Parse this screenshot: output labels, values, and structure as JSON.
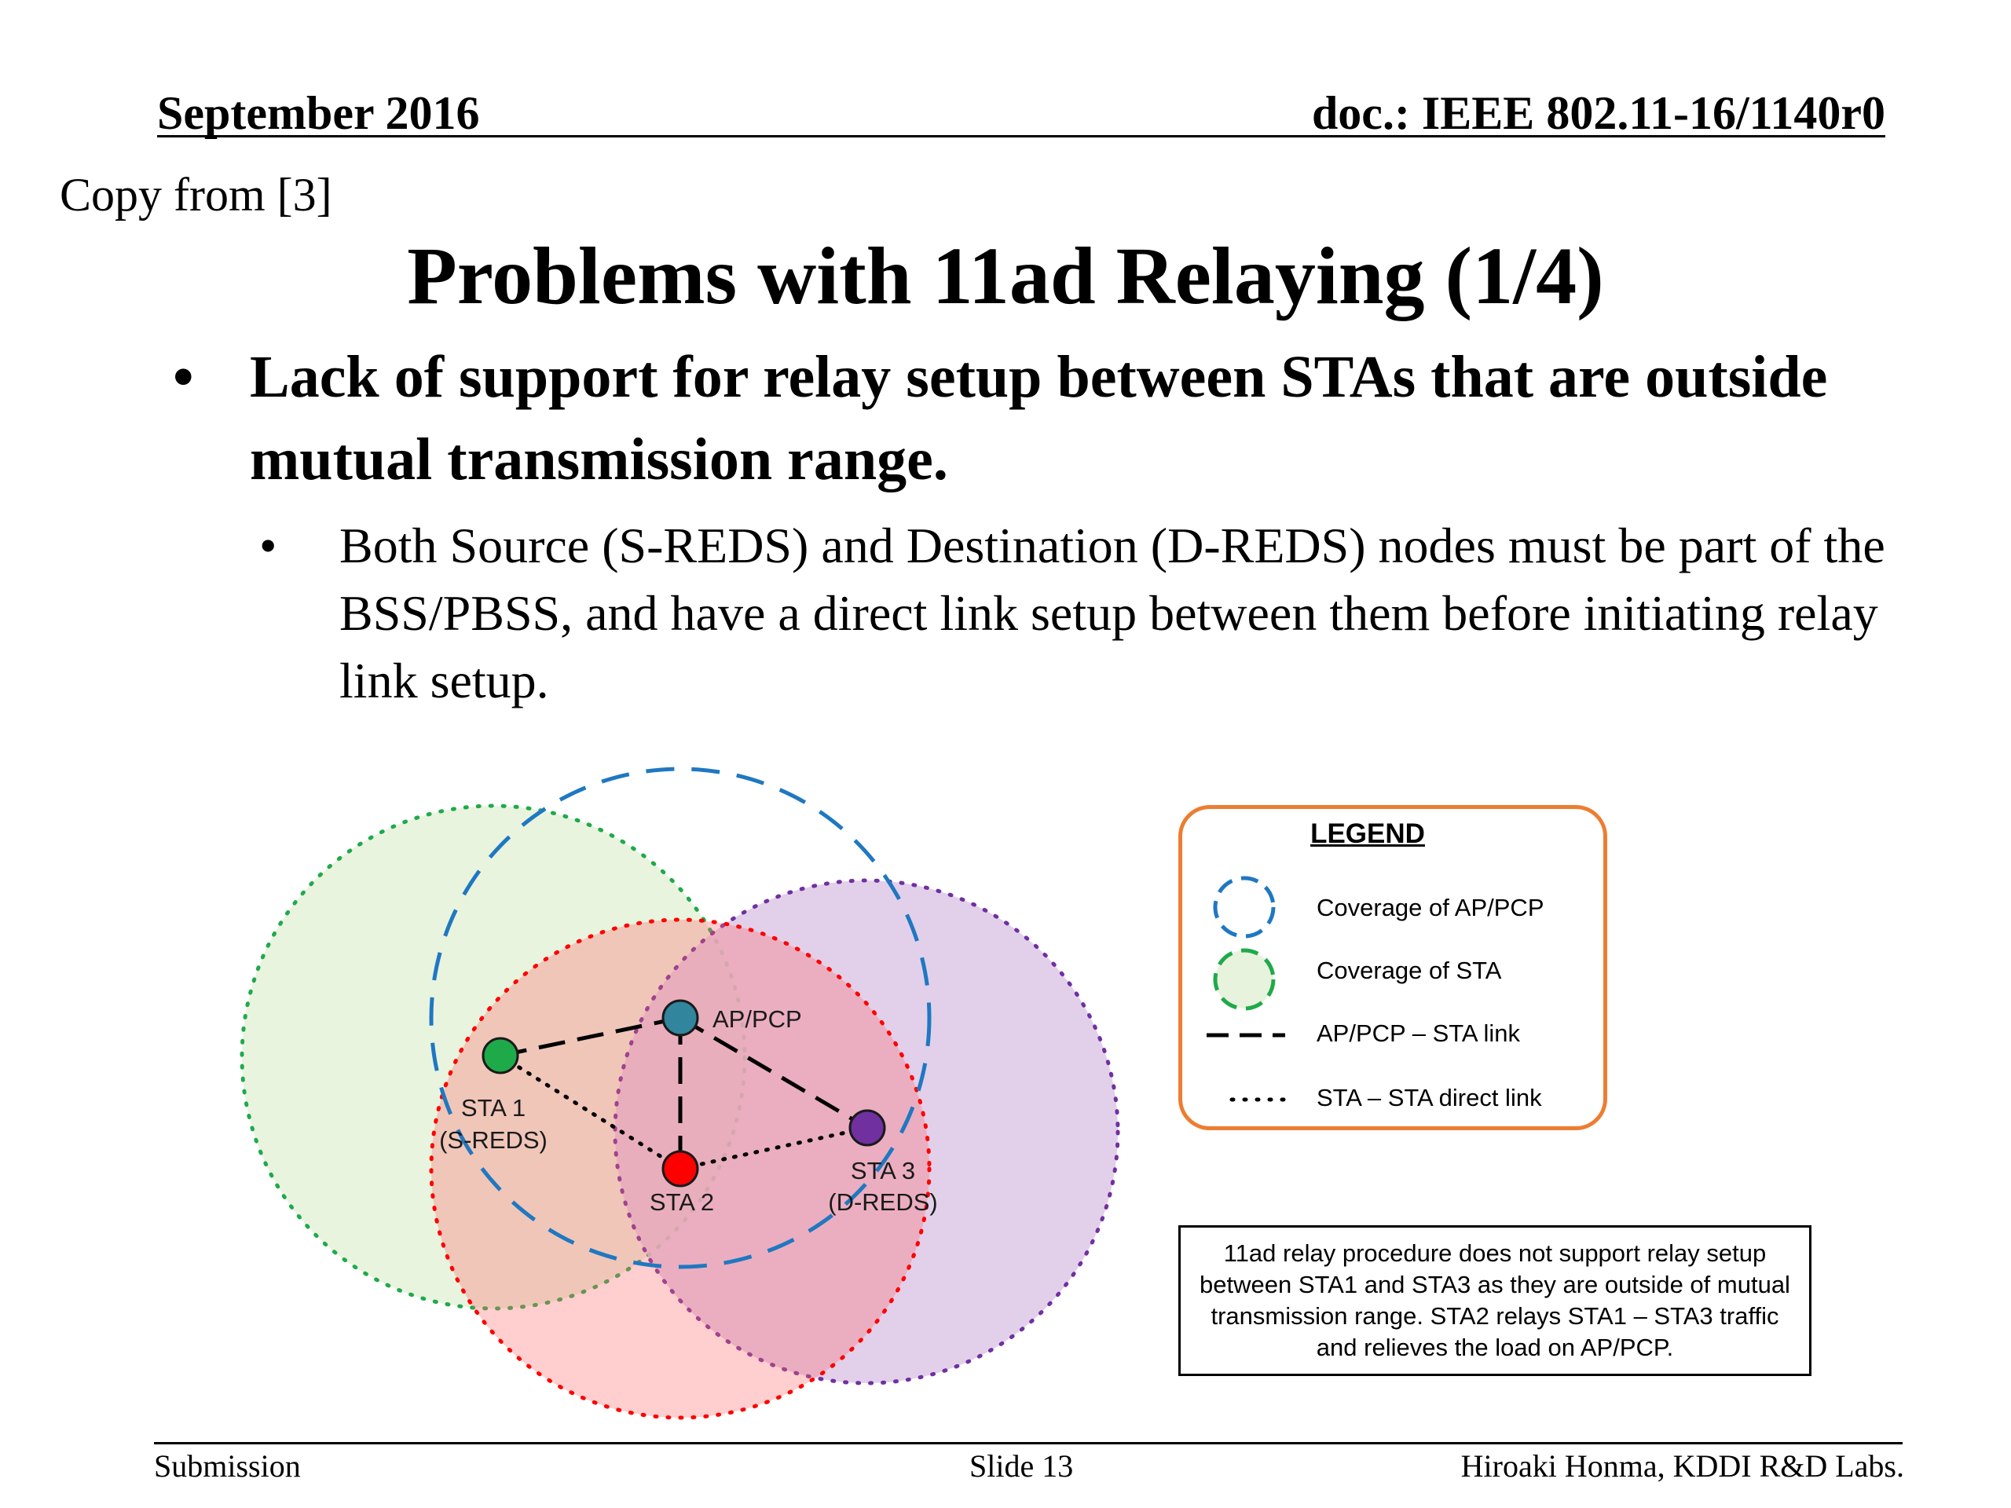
{
  "header": {
    "date": "September 2016",
    "doc": "doc.: IEEE 802.11-16/1140r0"
  },
  "copy_note": "Copy from [3]",
  "title": "Problems with 11ad Relaying (1/4)",
  "bullets": {
    "level1_marker": "•",
    "level1_text": "Lack of support for relay setup between STAs that are outside mutual transmission range.",
    "level2_marker": "•",
    "level2_text": "Both Source (S-REDS) and Destination (D-REDS) nodes must be part of the BSS/PBSS, and have a direct link setup between them before initiating relay link setup."
  },
  "diagram": {
    "nodes": {
      "ap": {
        "label": "AP/PCP",
        "color": "#31859c"
      },
      "sta1": {
        "label_line1": "STA 1",
        "label_line2": "(S-REDS)",
        "color": "#1faa4a"
      },
      "sta2": {
        "label": "STA 2",
        "color": "#ff0000"
      },
      "sta3": {
        "label_line1": "STA 3",
        "label_line2": "(D-REDS)",
        "color": "#7030a0"
      }
    },
    "coverage_colors": {
      "ap": "#1f78c1",
      "sta1": "#1faa4a",
      "sta2": "#ff0000",
      "sta3": "#7030a0"
    },
    "legend": {
      "title": "LEGEND",
      "items": [
        {
          "icon": "dashed-blue-circle-icon",
          "label": "Coverage of AP/PCP"
        },
        {
          "icon": "dashed-green-circle-icon",
          "label": "Coverage of STA"
        },
        {
          "icon": "dashed-line-icon",
          "label": "AP/PCP – STA link"
        },
        {
          "icon": "dotted-line-icon",
          "label": "STA – STA direct link"
        }
      ],
      "border_color": "#ed7d31"
    },
    "note": "11ad relay procedure does not support relay setup between STA1 and STA3 as they are outside of mutual transmission range. STA2 relays STA1 – STA3 traffic and relieves the load on AP/PCP."
  },
  "footer": {
    "left": "Submission",
    "center": "Slide 13",
    "right": "Hiroaki Honma, KDDI R&D Labs."
  }
}
